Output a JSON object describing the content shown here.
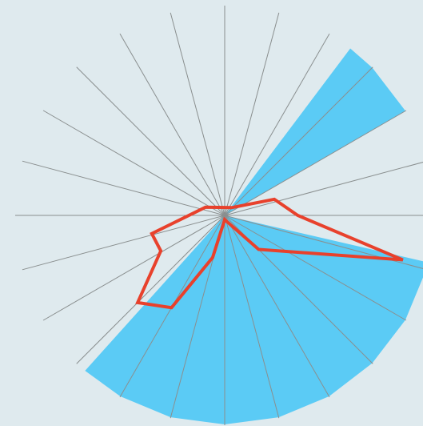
{
  "chart_data": {
    "type": "polar",
    "rlim": [
      0,
      100
    ],
    "thetaticks": [
      0,
      15,
      30,
      45,
      60,
      75,
      90,
      105,
      120,
      135,
      150,
      165,
      180,
      195,
      210,
      225,
      240,
      255,
      270,
      285,
      300,
      315,
      330,
      345
    ],
    "areas": [
      {
        "color": "#5bcbf5",
        "theta": [
          37,
          60
        ],
        "r": 100
      },
      {
        "color": "#5bcbf5",
        "theta": [
          103,
          222
        ],
        "r": 100
      }
    ],
    "series": [
      {
        "color": "#e8412c",
        "theta": [
          293,
          42,
          72,
          90,
          104,
          135,
          180,
          196,
          210,
          225,
          241,
          256
        ],
        "r": [
          10,
          5,
          25,
          35,
          88,
          23,
          2,
          21,
          51,
          59,
          35,
          36
        ]
      }
    ]
  }
}
